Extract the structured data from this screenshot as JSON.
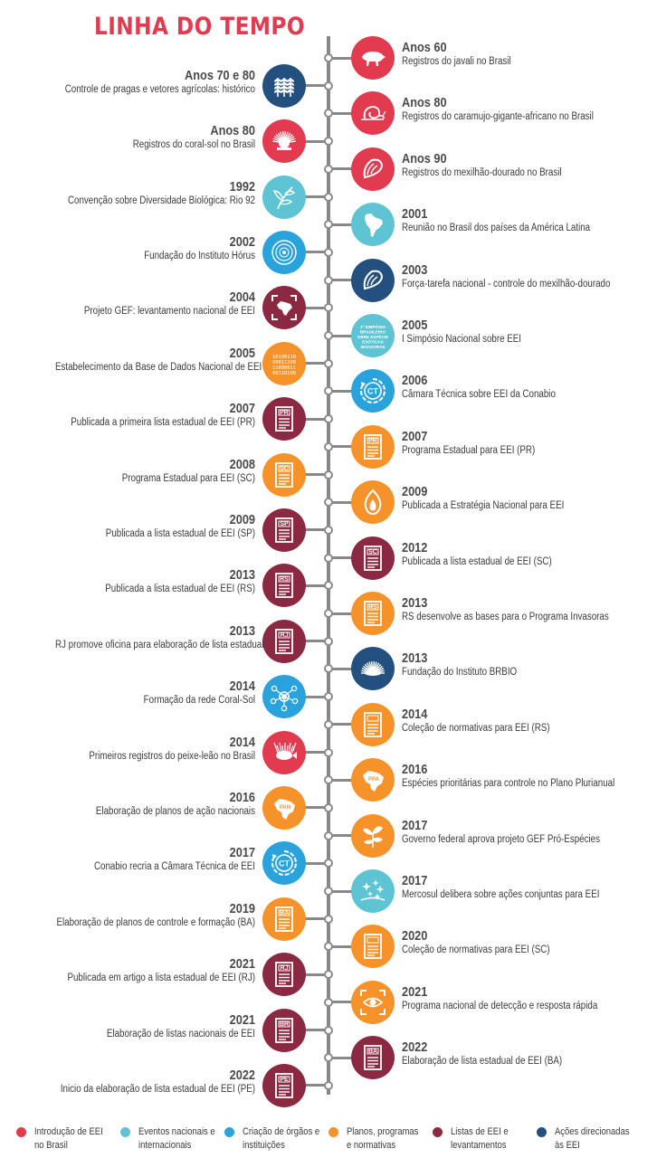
{
  "title": "LINHA DO TEMPO",
  "colors": {
    "introducao": "#e23a4f",
    "eventos": "#5ec4d3",
    "criacao": "#2aa3dd",
    "planos": "#f5922a",
    "listas": "#8b2942",
    "acoes": "#24507f",
    "line": "#888888",
    "title": "#e23a4f"
  },
  "events": [
    {
      "side": "right",
      "year": "Anos 60",
      "desc": "Registros do javali no Brasil",
      "category": "introducao",
      "icon": "boar-icon"
    },
    {
      "side": "left",
      "year": "Anos 70 e 80",
      "desc": "Controle de pragas e vetores agrícolas: histórico",
      "category": "acoes",
      "icon": "wheat-icon"
    },
    {
      "side": "right",
      "year": "Anos 80",
      "desc": "Registros do caramujo-gigante-africano no Brasil",
      "category": "introducao",
      "icon": "snail-icon"
    },
    {
      "side": "left",
      "year": "Anos 80",
      "desc": "Registros do coral-sol no Brasil",
      "category": "introducao",
      "icon": "sun-coral-icon"
    },
    {
      "side": "right",
      "year": "Anos 90",
      "desc": "Registros do mexilhão-dourado no Brasil",
      "category": "introducao",
      "icon": "mussel-icon"
    },
    {
      "side": "left",
      "year": "1992",
      "desc": "Convenção sobre Diversidade Biológica: Rio 92",
      "category": "eventos",
      "icon": "leaves-icon"
    },
    {
      "side": "right",
      "year": "2001",
      "desc": "Reunião no Brasil dos países da América Latina",
      "category": "eventos",
      "icon": "south-america-map-icon"
    },
    {
      "side": "left",
      "year": "2002",
      "desc": "Fundação do Instituto Hórus",
      "category": "criacao",
      "icon": "horus-logo-icon"
    },
    {
      "side": "right",
      "year": "2003",
      "desc": "Força-tarefa nacional - controle do mexilhão-dourado",
      "category": "acoes",
      "icon": "mussel-icon"
    },
    {
      "side": "left",
      "year": "2004",
      "desc": "Projeto GEF: levantamento nacional de EEI",
      "category": "listas",
      "icon": "brazil-scan-icon"
    },
    {
      "side": "right",
      "year": "2005",
      "desc": "I Simpósio Nacional sobre EEI",
      "category": "eventos",
      "icon": "symposium-logo-icon",
      "logo_lines": [
        "1º SIMPÓSIO",
        "BRASILEIRO",
        "SOBRE ESPÉCIES",
        "EXÓTICAS",
        "INVASORAS"
      ]
    },
    {
      "side": "left",
      "year": "2005",
      "desc": "Estabelecimento da Base de Dados Nacional de EEI",
      "category": "planos",
      "icon": "binary-database-icon",
      "binary_lines": [
        "10100110",
        "00011100",
        "11000011",
        "00110100"
      ]
    },
    {
      "side": "right",
      "year": "2006",
      "desc": "Câmara Técnica sobre EEI da Conabio",
      "category": "criacao",
      "icon": "ct-cycle-icon",
      "code": "CT"
    },
    {
      "side": "left",
      "year": "2007",
      "desc": "Publicada a primeira lista estadual de EEI (PR)",
      "category": "listas",
      "icon": "document-icon",
      "code": "PR"
    },
    {
      "side": "right",
      "year": "2007",
      "desc": "Programa Estadual para EEI (PR)",
      "category": "planos",
      "icon": "document-icon",
      "code": "PR"
    },
    {
      "side": "left",
      "year": "2008",
      "desc": "Programa Estadual para EEI (SC)",
      "category": "planos",
      "icon": "document-icon",
      "code": "SC"
    },
    {
      "side": "right",
      "year": "2009",
      "desc": "Publicada a Estratégia Nacional para EEI",
      "category": "planos",
      "icon": "flame-leaf-icon"
    },
    {
      "side": "left",
      "year": "2009",
      "desc": "Publicada a lista estadual de EEI (SP)",
      "category": "listas",
      "icon": "document-icon",
      "code": "SP"
    },
    {
      "side": "right",
      "year": "2012",
      "desc": "Publicada a lista estadual de EEI (SC)",
      "category": "listas",
      "icon": "document-icon",
      "code": "SC"
    },
    {
      "side": "left",
      "year": "2013",
      "desc": "Publicada a lista estadual de EEI (RS)",
      "category": "listas",
      "icon": "document-icon",
      "code": "RS"
    },
    {
      "side": "right",
      "year": "2013",
      "desc": "RS desenvolve as bases para o Programa Invasoras",
      "category": "planos",
      "icon": "document-icon",
      "code": "RS"
    },
    {
      "side": "left",
      "year": "2013",
      "desc": "RJ promove oficina para elaboração de lista estadual",
      "category": "listas",
      "icon": "document-icon",
      "code": "RJ"
    },
    {
      "side": "right",
      "year": "2013",
      "desc": "Fundação do Instituto BRBIO",
      "category": "acoes",
      "icon": "brbio-logo-icon"
    },
    {
      "side": "left",
      "year": "2014",
      "desc": "Formação da rede Coral-Sol",
      "category": "criacao",
      "icon": "network-icon"
    },
    {
      "side": "right",
      "year": "2014",
      "desc": "Coleção de normativas para EEI (RS)",
      "category": "planos",
      "icon": "document-icon",
      "code": ""
    },
    {
      "side": "left",
      "year": "2014",
      "desc": "Primeiros registros do peixe-leão no Brasil",
      "category": "introducao",
      "icon": "lionfish-icon"
    },
    {
      "side": "right",
      "year": "2016",
      "desc": "Espécies prioritárias para controle no Plano Plurianual",
      "category": "planos",
      "icon": "brazil-map-icon",
      "code": "PPA"
    },
    {
      "side": "left",
      "year": "2016",
      "desc": "Elaboração de planos de ação nacionais",
      "category": "planos",
      "icon": "brazil-map-icon",
      "code": "PAN"
    },
    {
      "side": "right",
      "year": "2017",
      "desc": "Governo federal aprova projeto GEF Pró-Espécies",
      "category": "planos",
      "icon": "pro-especies-logo-icon"
    },
    {
      "side": "left",
      "year": "2017",
      "desc": "Conabio recria a Câmara Técnica de EEI",
      "category": "criacao",
      "icon": "ct-cycle-icon",
      "code": "CT"
    },
    {
      "side": "right",
      "year": "2017",
      "desc": "Mercosul delibera sobre ações conjuntas para EEI",
      "category": "eventos",
      "icon": "mercosul-stars-icon"
    },
    {
      "side": "left",
      "year": "2019",
      "desc": "Elaboração de planos de controle e formação (BA)",
      "category": "planos",
      "icon": "document-icon",
      "code": "BA"
    },
    {
      "side": "right",
      "year": "2020",
      "desc": "Coleção de normativas para EEI (SC)",
      "category": "planos",
      "icon": "document-icon",
      "code": ""
    },
    {
      "side": "left",
      "year": "2021",
      "desc": "Publicada em artigo a lista estadual de EEI (RJ)",
      "category": "listas",
      "icon": "document-icon",
      "code": "RJ"
    },
    {
      "side": "right",
      "year": "2021",
      "desc": "Programa nacional de detecção e resposta rápida",
      "category": "planos",
      "icon": "eye-scan-icon"
    },
    {
      "side": "left",
      "year": "2021",
      "desc": "Elaboração de listas nacionais de EEI",
      "category": "listas",
      "icon": "document-icon",
      "code": "BR"
    },
    {
      "side": "right",
      "year": "2022",
      "desc": "Elaboração de lista estadual de EEI (BA)",
      "category": "listas",
      "icon": "document-icon",
      "code": "BA"
    },
    {
      "side": "left",
      "year": "2022",
      "desc": "Inicio da elaboração de lista estadual de EEI (PE)",
      "category": "listas",
      "icon": "document-icon",
      "code": "PE"
    }
  ],
  "legend": [
    {
      "category": "introducao",
      "label": "Introdução de EEI no Brasil"
    },
    {
      "category": "eventos",
      "label": "Eventos nacionais e internacionais"
    },
    {
      "category": "criacao",
      "label": "Criação de órgãos e instituições"
    },
    {
      "category": "planos",
      "label": "Planos, programas e normativas"
    },
    {
      "category": "listas",
      "label": "Listas de EEI e levantamentos"
    },
    {
      "category": "acoes",
      "label": "Ações direcionadas às EEI"
    }
  ]
}
